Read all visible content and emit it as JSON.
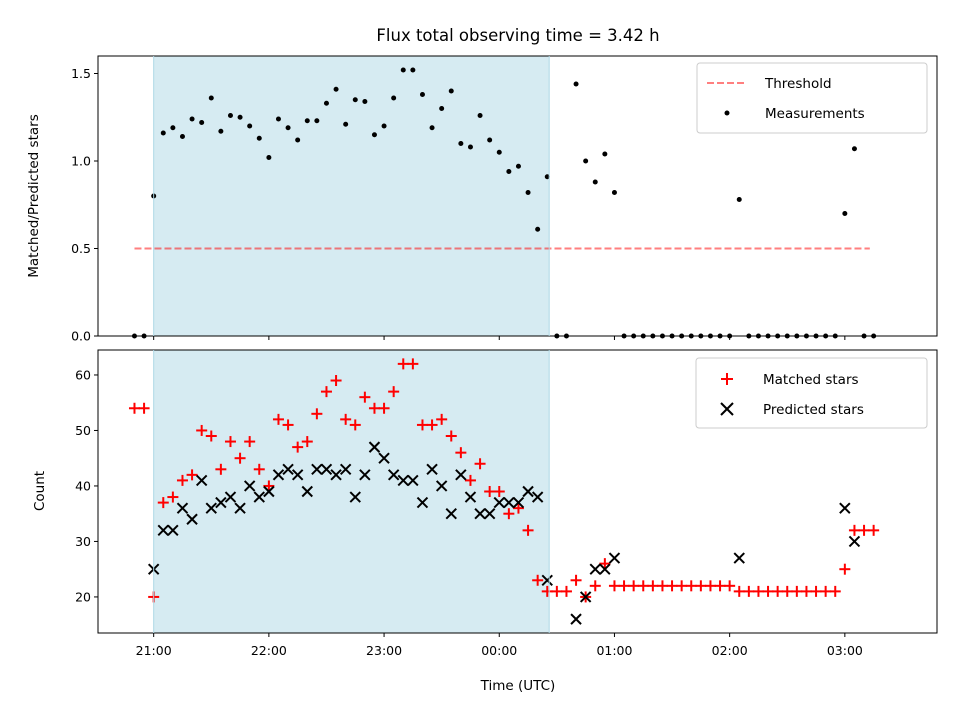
{
  "title": "Flux total observing time = 3.42 h",
  "colors": {
    "shade": "#add8e6",
    "threshold": "#ff0000",
    "measurements": "#000000",
    "matched": "#ff0000",
    "predicted": "#000000"
  },
  "chart_data": [
    {
      "type": "scatter",
      "ylabel": "Matched/Predicted stars",
      "ylim": [
        0,
        1.6
      ],
      "xlim": [
        "20:31",
        "03:48"
      ],
      "yticks": [
        0.0,
        0.5,
        1.0,
        1.5
      ],
      "ytick_labels": [
        "0.0",
        "0.5",
        "1.0",
        "1.5"
      ],
      "shaded_span": [
        "21:00",
        "00:26"
      ],
      "legend_position": "upper right",
      "legend": {
        "threshold": "Threshold",
        "measurements": "Measurements"
      },
      "threshold": {
        "name": "Threshold",
        "y": 0.5,
        "x_start": "20:50",
        "x_end": "03:13"
      },
      "measurements": {
        "name": "Measurements",
        "points": [
          [
            "20:50",
            0
          ],
          [
            "20:55",
            0
          ],
          [
            "21:00",
            0.8
          ],
          [
            "21:05",
            1.16
          ],
          [
            "21:10",
            1.19
          ],
          [
            "21:15",
            1.14
          ],
          [
            "21:20",
            1.24
          ],
          [
            "21:25",
            1.22
          ],
          [
            "21:30",
            1.36
          ],
          [
            "21:35",
            1.17
          ],
          [
            "21:40",
            1.26
          ],
          [
            "21:45",
            1.25
          ],
          [
            "21:50",
            1.2
          ],
          [
            "21:55",
            1.13
          ],
          [
            "22:00",
            1.02
          ],
          [
            "22:05",
            1.24
          ],
          [
            "22:10",
            1.19
          ],
          [
            "22:15",
            1.12
          ],
          [
            "22:20",
            1.23
          ],
          [
            "22:25",
            1.23
          ],
          [
            "22:30",
            1.33
          ],
          [
            "22:35",
            1.41
          ],
          [
            "22:40",
            1.21
          ],
          [
            "22:45",
            1.35
          ],
          [
            "22:50",
            1.34
          ],
          [
            "22:55",
            1.15
          ],
          [
            "23:00",
            1.2
          ],
          [
            "23:05",
            1.36
          ],
          [
            "23:10",
            1.52
          ],
          [
            "23:15",
            1.52
          ],
          [
            "23:20",
            1.38
          ],
          [
            "23:25",
            1.19
          ],
          [
            "23:30",
            1.3
          ],
          [
            "23:35",
            1.4
          ],
          [
            "23:40",
            1.1
          ],
          [
            "23:45",
            1.08
          ],
          [
            "23:50",
            1.26
          ],
          [
            "23:55",
            1.12
          ],
          [
            "00:00",
            1.05
          ],
          [
            "00:05",
            0.94
          ],
          [
            "00:10",
            0.97
          ],
          [
            "00:15",
            0.82
          ],
          [
            "00:20",
            0.61
          ],
          [
            "00:25",
            0.91
          ],
          [
            "00:30",
            0
          ],
          [
            "00:35",
            0
          ],
          [
            "00:40",
            1.44
          ],
          [
            "00:45",
            1.0
          ],
          [
            "00:50",
            0.88
          ],
          [
            "00:55",
            1.04
          ],
          [
            "01:00",
            0.82
          ],
          [
            "01:05",
            0
          ],
          [
            "01:10",
            0
          ],
          [
            "01:15",
            0
          ],
          [
            "01:20",
            0
          ],
          [
            "01:25",
            0
          ],
          [
            "01:30",
            0
          ],
          [
            "01:35",
            0
          ],
          [
            "01:40",
            0
          ],
          [
            "01:45",
            0
          ],
          [
            "01:50",
            0
          ],
          [
            "01:55",
            0
          ],
          [
            "02:00",
            0
          ],
          [
            "02:05",
            0.78
          ],
          [
            "02:10",
            0
          ],
          [
            "02:15",
            0
          ],
          [
            "02:20",
            0
          ],
          [
            "02:25",
            0
          ],
          [
            "02:30",
            0
          ],
          [
            "02:35",
            0
          ],
          [
            "02:40",
            0
          ],
          [
            "02:45",
            0
          ],
          [
            "02:50",
            0
          ],
          [
            "02:55",
            0
          ],
          [
            "03:00",
            0.7
          ],
          [
            "03:05",
            1.07
          ],
          [
            "03:10",
            0
          ],
          [
            "03:15",
            0
          ]
        ]
      }
    },
    {
      "type": "scatter",
      "xlabel": "Time (UTC)",
      "ylabel": "Count",
      "ylim": [
        13.5,
        64.5
      ],
      "xlim": [
        "20:31",
        "03:48"
      ],
      "yticks": [
        20,
        30,
        40,
        50,
        60
      ],
      "ytick_labels": [
        "20",
        "30",
        "40",
        "50",
        "60"
      ],
      "xticks": [
        "21:00",
        "22:00",
        "23:00",
        "00:00",
        "01:00",
        "02:00",
        "03:00"
      ],
      "shaded_span": [
        "21:00",
        "00:26"
      ],
      "legend_position": "upper right",
      "legend": {
        "matched": "Matched stars",
        "predicted": "Predicted stars"
      },
      "series": [
        {
          "name": "Matched stars",
          "marker": "plus",
          "points": [
            [
              "20:50",
              54
            ],
            [
              "20:55",
              54
            ],
            [
              "21:00",
              20
            ],
            [
              "21:05",
              37
            ],
            [
              "21:10",
              38
            ],
            [
              "21:15",
              41
            ],
            [
              "21:20",
              42
            ],
            [
              "21:25",
              50
            ],
            [
              "21:30",
              49
            ],
            [
              "21:35",
              43
            ],
            [
              "21:40",
              48
            ],
            [
              "21:45",
              45
            ],
            [
              "21:50",
              48
            ],
            [
              "21:55",
              43
            ],
            [
              "22:00",
              40
            ],
            [
              "22:05",
              52
            ],
            [
              "22:10",
              51
            ],
            [
              "22:15",
              47
            ],
            [
              "22:20",
              48
            ],
            [
              "22:25",
              53
            ],
            [
              "22:30",
              57
            ],
            [
              "22:35",
              59
            ],
            [
              "22:40",
              52
            ],
            [
              "22:45",
              51
            ],
            [
              "22:50",
              56
            ],
            [
              "22:55",
              54
            ],
            [
              "23:00",
              54
            ],
            [
              "23:05",
              57
            ],
            [
              "23:10",
              62
            ],
            [
              "23:15",
              62
            ],
            [
              "23:20",
              51
            ],
            [
              "23:25",
              51
            ],
            [
              "23:30",
              52
            ],
            [
              "23:35",
              49
            ],
            [
              "23:40",
              46
            ],
            [
              "23:45",
              41
            ],
            [
              "23:50",
              44
            ],
            [
              "23:55",
              39
            ],
            [
              "00:00",
              39
            ],
            [
              "00:05",
              35
            ],
            [
              "00:10",
              36
            ],
            [
              "00:15",
              32
            ],
            [
              "00:20",
              23
            ],
            [
              "00:25",
              21
            ],
            [
              "00:30",
              21
            ],
            [
              "00:35",
              21
            ],
            [
              "00:40",
              23
            ],
            [
              "00:45",
              20
            ],
            [
              "00:50",
              22
            ],
            [
              "00:55",
              26
            ],
            [
              "01:00",
              22
            ],
            [
              "01:05",
              22
            ],
            [
              "01:10",
              22
            ],
            [
              "01:15",
              22
            ],
            [
              "01:20",
              22
            ],
            [
              "01:25",
              22
            ],
            [
              "01:30",
              22
            ],
            [
              "01:35",
              22
            ],
            [
              "01:40",
              22
            ],
            [
              "01:45",
              22
            ],
            [
              "01:50",
              22
            ],
            [
              "01:55",
              22
            ],
            [
              "02:00",
              22
            ],
            [
              "02:05",
              21
            ],
            [
              "02:10",
              21
            ],
            [
              "02:15",
              21
            ],
            [
              "02:20",
              21
            ],
            [
              "02:25",
              21
            ],
            [
              "02:30",
              21
            ],
            [
              "02:35",
              21
            ],
            [
              "02:40",
              21
            ],
            [
              "02:45",
              21
            ],
            [
              "02:50",
              21
            ],
            [
              "02:55",
              21
            ],
            [
              "03:00",
              25
            ],
            [
              "03:05",
              32
            ],
            [
              "03:10",
              32
            ],
            [
              "03:15",
              32
            ]
          ]
        },
        {
          "name": "Predicted stars",
          "marker": "x",
          "points": [
            [
              "21:00",
              25
            ],
            [
              "21:05",
              32
            ],
            [
              "21:10",
              32
            ],
            [
              "21:15",
              36
            ],
            [
              "21:20",
              34
            ],
            [
              "21:25",
              41
            ],
            [
              "21:30",
              36
            ],
            [
              "21:35",
              37
            ],
            [
              "21:40",
              38
            ],
            [
              "21:45",
              36
            ],
            [
              "21:50",
              40
            ],
            [
              "21:55",
              38
            ],
            [
              "22:00",
              39
            ],
            [
              "22:05",
              42
            ],
            [
              "22:10",
              43
            ],
            [
              "22:15",
              42
            ],
            [
              "22:20",
              39
            ],
            [
              "22:25",
              43
            ],
            [
              "22:30",
              43
            ],
            [
              "22:35",
              42
            ],
            [
              "22:40",
              43
            ],
            [
              "22:45",
              38
            ],
            [
              "22:50",
              42
            ],
            [
              "22:55",
              47
            ],
            [
              "23:00",
              45
            ],
            [
              "23:05",
              42
            ],
            [
              "23:10",
              41
            ],
            [
              "23:15",
              41
            ],
            [
              "23:20",
              37
            ],
            [
              "23:25",
              43
            ],
            [
              "23:30",
              40
            ],
            [
              "23:35",
              35
            ],
            [
              "23:40",
              42
            ],
            [
              "23:45",
              38
            ],
            [
              "23:50",
              35
            ],
            [
              "23:55",
              35
            ],
            [
              "00:00",
              37
            ],
            [
              "00:05",
              37
            ],
            [
              "00:10",
              37
            ],
            [
              "00:15",
              39
            ],
            [
              "00:20",
              38
            ],
            [
              "00:25",
              23
            ],
            [
              "00:40",
              16
            ],
            [
              "00:45",
              20
            ],
            [
              "00:50",
              25
            ],
            [
              "00:55",
              25
            ],
            [
              "01:00",
              27
            ],
            [
              "02:05",
              27
            ],
            [
              "03:00",
              36
            ],
            [
              "03:05",
              30
            ]
          ]
        }
      ]
    }
  ]
}
